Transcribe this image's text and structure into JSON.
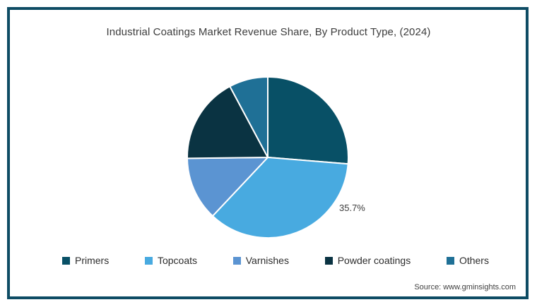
{
  "title": "Industrial Coatings Market Revenue Share, By Product Type, (2024)",
  "source_text": "Source: www.gminsights.com",
  "frame_color": "#0e4c64",
  "chart_data": {
    "type": "pie",
    "title": "Industrial Coatings Market Revenue Share, By Product Type, (2024)",
    "labels": [
      "Primers",
      "Topcoats",
      "Varnishes",
      "Powder coatings",
      "Others"
    ],
    "values": [
      26.3,
      35.7,
      12.8,
      17.4,
      7.8
    ],
    "colors": [
      "#085066",
      "#48aae0",
      "#5b94d2",
      "#0a3342",
      "#1f7096"
    ],
    "start_angle_deg": 0,
    "direction": "clockwise",
    "slice_border_color": "#ffffff",
    "legend_position": "bottom",
    "annotations": [
      {
        "text": "35.7%",
        "slice": "Topcoats"
      }
    ],
    "source": "Source: www.gminsights.com"
  }
}
